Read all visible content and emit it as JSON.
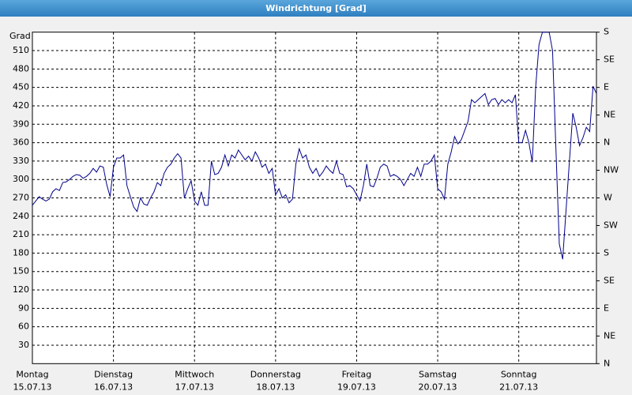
{
  "chart_data": {
    "type": "line",
    "title": "Windrichtung [Grad]",
    "y_label": "Grad",
    "color": "#00008b",
    "grid": true,
    "xlim": [
      0,
      167
    ],
    "ylim": [
      0,
      540
    ],
    "y2lim": [
      0,
      540
    ],
    "xticks": [
      {
        "value": 0,
        "label": "Montag",
        "date": "15.07.13"
      },
      {
        "value": 24,
        "label": "Dienstag",
        "date": "16.07.13"
      },
      {
        "value": 48,
        "label": "Mittwoch",
        "date": "17.07.13"
      },
      {
        "value": 72,
        "label": "Donnerstag",
        "date": "18.07.13"
      },
      {
        "value": 96,
        "label": "Freitag",
        "date": "19.07.13"
      },
      {
        "value": 120,
        "label": "Samstag",
        "date": "20.07.13"
      },
      {
        "value": 144,
        "label": "Sonntag",
        "date": "21.07.13"
      }
    ],
    "yticks": [
      30,
      60,
      90,
      120,
      150,
      180,
      210,
      240,
      270,
      300,
      330,
      360,
      390,
      420,
      450,
      480,
      510
    ],
    "y2ticks": [
      {
        "value": 0,
        "label": "N"
      },
      {
        "value": 45,
        "label": "NE"
      },
      {
        "value": 90,
        "label": "E"
      },
      {
        "value": 135,
        "label": "SE"
      },
      {
        "value": 180,
        "label": "S"
      },
      {
        "value": 225,
        "label": "SW"
      },
      {
        "value": 270,
        "label": "W"
      },
      {
        "value": 315,
        "label": "NW"
      },
      {
        "value": 360,
        "label": "N"
      },
      {
        "value": 405,
        "label": "NE"
      },
      {
        "value": 450,
        "label": "E"
      },
      {
        "value": 495,
        "label": "SE"
      },
      {
        "value": 540,
        "label": "S"
      }
    ],
    "x": [
      0,
      1,
      2,
      3,
      4,
      5,
      6,
      7,
      8,
      9,
      10,
      11,
      12,
      13,
      14,
      15,
      16,
      17,
      18,
      19,
      20,
      21,
      22,
      23,
      24,
      25,
      26,
      27,
      28,
      29,
      30,
      31,
      32,
      33,
      34,
      35,
      36,
      37,
      38,
      39,
      40,
      41,
      42,
      43,
      44,
      45,
      46,
      47,
      48,
      49,
      50,
      51,
      52,
      53,
      54,
      55,
      56,
      57,
      58,
      59,
      60,
      61,
      62,
      63,
      64,
      65,
      66,
      67,
      68,
      69,
      70,
      71,
      72,
      73,
      74,
      75,
      76,
      77,
      78,
      79,
      80,
      81,
      82,
      83,
      84,
      85,
      86,
      87,
      88,
      89,
      90,
      91,
      92,
      93,
      94,
      95,
      96,
      97,
      98,
      99,
      100,
      101,
      102,
      103,
      104,
      105,
      106,
      107,
      108,
      109,
      110,
      111,
      112,
      113,
      114,
      115,
      116,
      117,
      118,
      119,
      120,
      121,
      122,
      123,
      124,
      125,
      126,
      127,
      128,
      129,
      130,
      131,
      132,
      133,
      134,
      135,
      136,
      137,
      138,
      139,
      140,
      141,
      142,
      143,
      144,
      145,
      146,
      147,
      148,
      149,
      150,
      151,
      152,
      153,
      154,
      155,
      156,
      157,
      158,
      159,
      160,
      161,
      162,
      163,
      164,
      165,
      166,
      167
    ],
    "values": [
      258,
      265,
      272,
      268,
      265,
      268,
      280,
      285,
      282,
      295,
      296,
      300,
      305,
      308,
      307,
      302,
      305,
      310,
      318,
      312,
      322,
      320,
      292,
      272,
      320,
      335,
      335,
      340,
      290,
      272,
      255,
      248,
      270,
      260,
      258,
      270,
      280,
      295,
      290,
      310,
      320,
      325,
      335,
      342,
      335,
      270,
      285,
      298,
      265,
      258,
      280,
      258,
      258,
      330,
      308,
      310,
      320,
      340,
      322,
      340,
      335,
      348,
      340,
      332,
      338,
      330,
      345,
      335,
      320,
      325,
      310,
      318,
      275,
      285,
      270,
      275,
      262,
      268,
      325,
      350,
      335,
      340,
      320,
      310,
      318,
      305,
      312,
      322,
      315,
      310,
      330,
      310,
      308,
      288,
      290,
      285,
      275,
      265,
      290,
      325,
      290,
      288,
      302,
      320,
      325,
      322,
      305,
      308,
      305,
      300,
      290,
      300,
      310,
      305,
      320,
      305,
      325,
      325,
      330,
      340,
      285,
      280,
      268,
      325,
      345,
      370,
      358,
      365,
      380,
      395,
      430,
      425,
      430,
      435,
      440,
      422,
      430,
      432,
      422,
      430,
      425,
      430,
      425,
      438,
      360,
      360,
      380,
      360,
      328,
      450,
      520,
      540,
      540,
      540,
      510,
      350,
      195,
      170,
      250,
      330,
      408,
      385,
      355,
      368,
      385,
      378,
      452,
      440
    ]
  }
}
